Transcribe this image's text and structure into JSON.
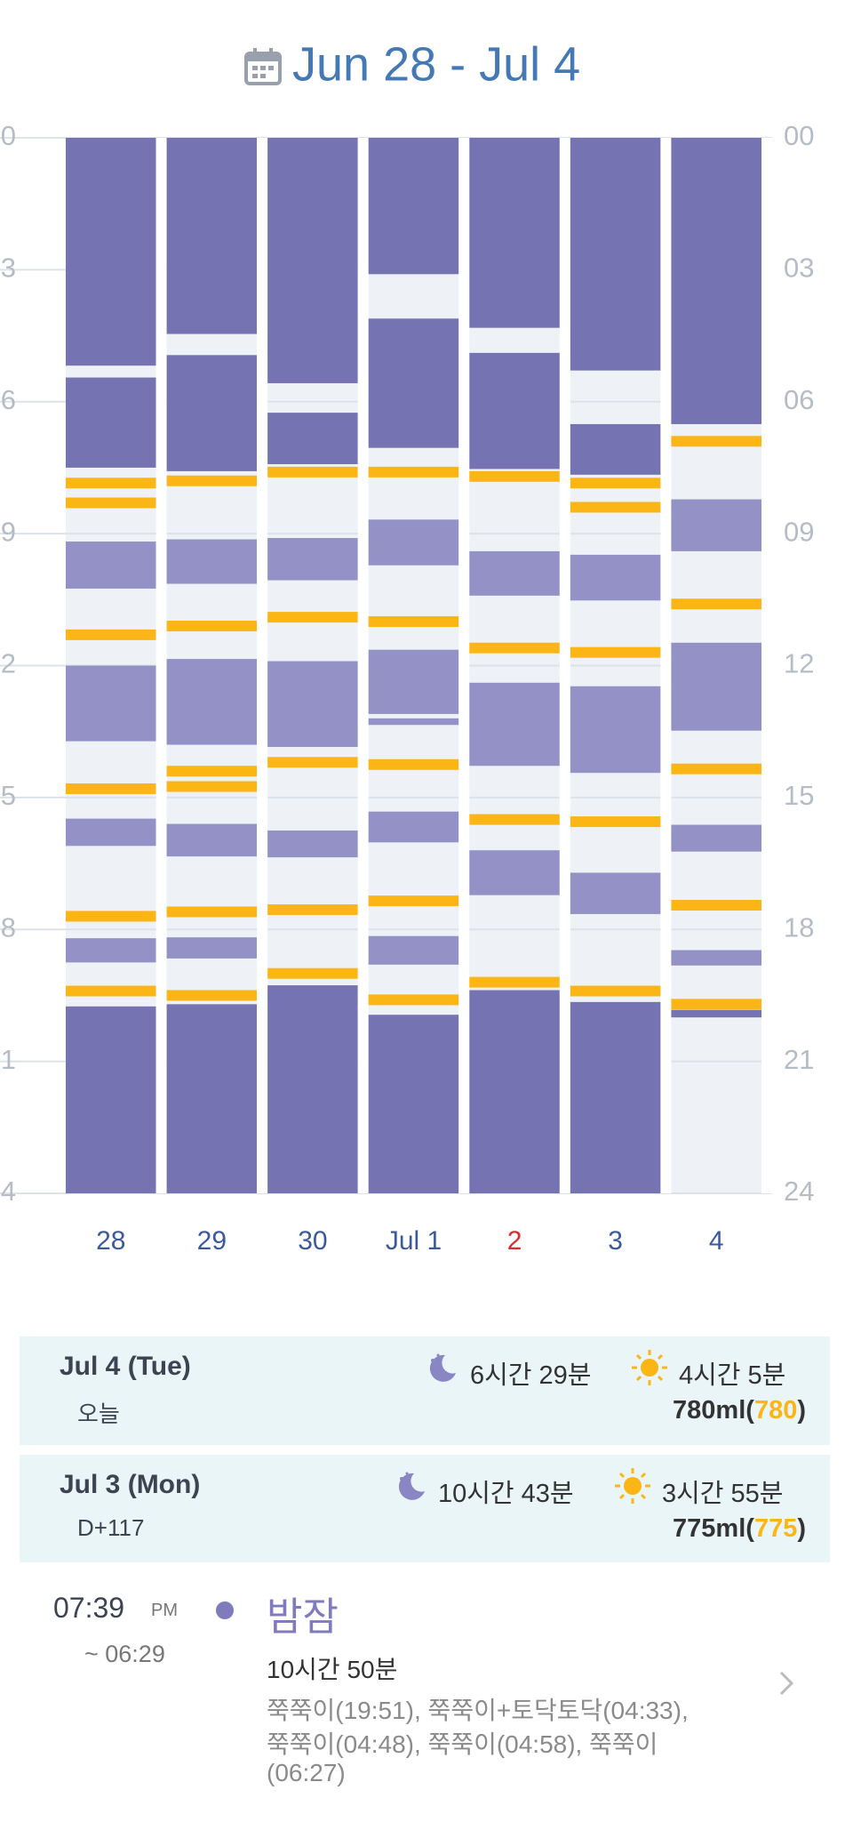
{
  "chart_data": {
    "type": "timeline",
    "title": "Jun 28 - Jul 4",
    "categories": [
      "28",
      "29",
      "30",
      "Jul 1",
      "2",
      "3",
      "4"
    ],
    "category_colors": [
      "#3b5a9c",
      "#3b5a9c",
      "#3b5a9c",
      "#3b5a9c",
      "#e0282e",
      "#3b5a9c",
      "#3b5a9c"
    ],
    "ylim": [
      0,
      24
    ],
    "yticks": [
      {
        "value": 0,
        "label": "00"
      },
      {
        "value": 3,
        "label": "03"
      },
      {
        "value": 6,
        "label": "06"
      },
      {
        "value": 9,
        "label": "09"
      },
      12,
      15,
      18,
      21,
      24
    ],
    "grid": true,
    "colors": {
      "night": "#7573b2",
      "nap": "#9391c5",
      "feed": "#fbb515",
      "background": "#eef2f6"
    },
    "days": [
      {
        "night": [
          [
            0,
            5.18
          ],
          [
            5.45,
            7.5
          ],
          [
            19.75,
            24
          ]
        ],
        "naps": [
          [
            9.18,
            10.25
          ],
          [
            12.0,
            13.72
          ],
          [
            15.48,
            16.1
          ],
          [
            18.2,
            18.75
          ]
        ],
        "feeds": [
          7.85,
          8.3,
          11.3,
          14.8,
          17.7,
          19.4
        ]
      },
      {
        "night": [
          [
            0,
            4.46
          ],
          [
            4.94,
            7.58
          ],
          [
            19.7,
            24
          ]
        ],
        "naps": [
          [
            9.13,
            10.14
          ],
          [
            11.85,
            13.8
          ],
          [
            15.6,
            16.34
          ],
          [
            18.18,
            18.66
          ]
        ],
        "feeds": [
          7.8,
          11.1,
          14.4,
          14.75,
          17.6,
          19.5
        ]
      },
      {
        "night": [
          [
            0,
            5.58
          ],
          [
            6.25,
            7.42
          ],
          [
            19.27,
            24
          ]
        ],
        "naps": [
          [
            9.1,
            10.06
          ],
          [
            11.9,
            13.85
          ],
          [
            15.75,
            16.36
          ]
        ],
        "feeds": [
          7.6,
          10.9,
          14.2,
          17.55,
          19.0
        ]
      },
      {
        "night": [
          [
            0,
            3.1
          ],
          [
            4.11,
            7.05
          ],
          [
            19.94,
            24
          ]
        ],
        "naps": [
          [
            8.68,
            9.72
          ],
          [
            11.64,
            13.1
          ],
          [
            13.2,
            13.35
          ],
          [
            15.32,
            16.02
          ],
          [
            18.15,
            18.8
          ]
        ],
        "feeds": [
          7.6,
          11.0,
          14.25,
          17.35,
          19.6
        ]
      },
      {
        "night": [
          [
            0,
            4.32
          ],
          [
            4.89,
            7.53
          ],
          [
            19.38,
            24
          ]
        ],
        "naps": [
          [
            9.4,
            10.41
          ],
          [
            12.39,
            14.28
          ],
          [
            16.2,
            17.22
          ]
        ],
        "feeds": [
          7.7,
          11.6,
          15.5,
          19.2
        ]
      },
      {
        "night": [
          [
            0,
            5.29
          ],
          [
            6.51,
            7.66
          ],
          [
            19.65,
            24
          ]
        ],
        "naps": [
          [
            9.48,
            10.52
          ],
          [
            12.47,
            14.44
          ],
          [
            16.71,
            17.65
          ]
        ],
        "feeds": [
          7.85,
          8.4,
          11.7,
          15.55,
          19.4
        ]
      },
      {
        "night": [
          [
            0,
            6.51
          ],
          [
            19.83,
            20.0
          ]
        ],
        "naps": [
          [
            8.22,
            9.4
          ],
          [
            11.48,
            13.48
          ],
          [
            15.62,
            16.23
          ],
          [
            18.47,
            18.82
          ]
        ],
        "feeds": [
          6.9,
          10.6,
          14.35,
          17.45,
          19.7
        ]
      }
    ]
  },
  "summaries": [
    {
      "date": "Jul 4 (Tue)",
      "sub": "오늘",
      "sleep": "6시간 29분",
      "awake": "4시간 5분",
      "volume": [
        "780ml",
        "(",
        "780",
        ")"
      ]
    },
    {
      "date": "Jul 3 (Mon)",
      "sub": "D+117",
      "sleep": "10시간 43분",
      "awake": "3시간 55분",
      "volume": [
        "775ml",
        "(",
        "775",
        ")"
      ]
    }
  ],
  "entry": {
    "time": "07:39",
    "ampm": "PM",
    "end": "~ 06:29",
    "title": "밤잠",
    "duration": "10시간 50분",
    "note": [
      "쭉쭉이(19:51), 쭉쭉이+토닥토닥(04:33),",
      "쭉쭉이(04:48), 쭉쭉이(04:58), 쭉쭉이",
      "(06:27)"
    ]
  }
}
